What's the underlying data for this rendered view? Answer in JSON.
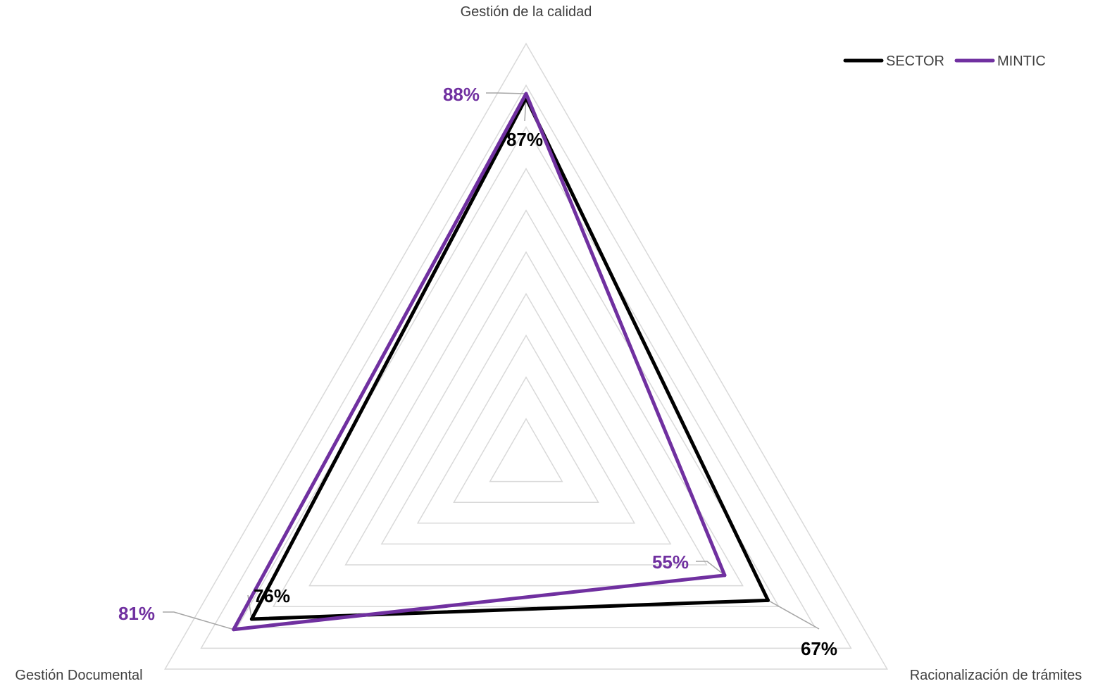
{
  "chart_data": {
    "type": "radar",
    "axes": [
      "Gestión de la calidad",
      "Racionalización de trámites",
      "Gestión Documental"
    ],
    "rlim": [
      0,
      1
    ],
    "grid": true,
    "legend_position": "top-right",
    "series": [
      {
        "name": "SECTOR",
        "values": [
          0.87,
          0.67,
          0.76
        ],
        "labels": [
          "87%",
          "67%",
          "76%"
        ],
        "color": "#000000"
      },
      {
        "name": "MINTIC",
        "values": [
          0.88,
          0.55,
          0.81
        ],
        "labels": [
          "88%",
          "55%",
          "81%"
        ],
        "color": "#7030a0"
      }
    ]
  }
}
